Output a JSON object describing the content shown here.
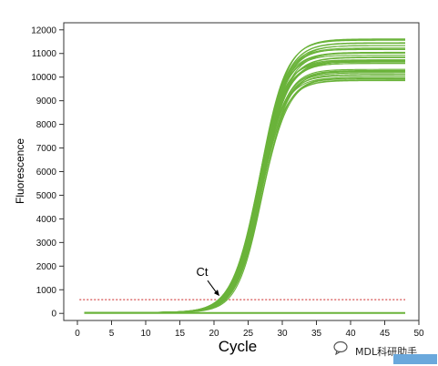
{
  "chart_data": {
    "type": "line",
    "xlabel": "Cycle",
    "ylabel": "Fluorescence",
    "xlim": [
      -2,
      50
    ],
    "ylim": [
      -300,
      12300
    ],
    "x_ticks": [
      0,
      5,
      10,
      15,
      20,
      25,
      30,
      35,
      40,
      45,
      50
    ],
    "y_ticks": [
      0,
      1000,
      2000,
      3000,
      4000,
      5000,
      6000,
      7000,
      8000,
      9000,
      10000,
      11000,
      12000
    ],
    "grid": false,
    "threshold": {
      "value": 580,
      "style": "dotted",
      "color": "#cc2222"
    },
    "annotation": {
      "text": "Ct",
      "x": 20.8,
      "y": 580
    },
    "series_color": "#6ab33a",
    "baseline": {
      "x": [
        1,
        48
      ],
      "y": 20
    },
    "series_model": {
      "x_start": 1,
      "x_end": 48,
      "baseline": 40,
      "midpoint_range": [
        26.5,
        27.1
      ],
      "plateau_range": [
        9800,
        11600
      ]
    },
    "series_count": 40
  },
  "watermark": {
    "text": "MDL科研助手",
    "icon": "chat-bubble-icon",
    "box_color": "#6aa8dc"
  }
}
